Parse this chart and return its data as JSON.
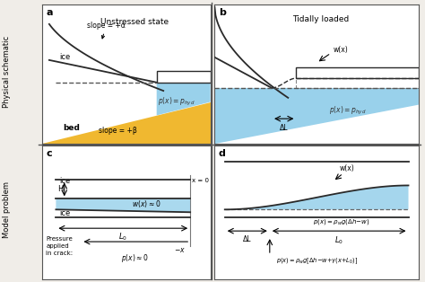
{
  "bg_color": "#f0ede8",
  "water_color": "#87c9e8",
  "bed_color": "#f0b830",
  "dark_line": "#2a2a2a",
  "gray_line": "#777777",
  "title_a": "Unstressed state",
  "title_b": "Tidally loaded",
  "label_a": "a",
  "label_b": "b",
  "label_c": "c",
  "label_d": "d",
  "ylabel_top": "Physical schematic",
  "ylabel_bot": "Model problem"
}
